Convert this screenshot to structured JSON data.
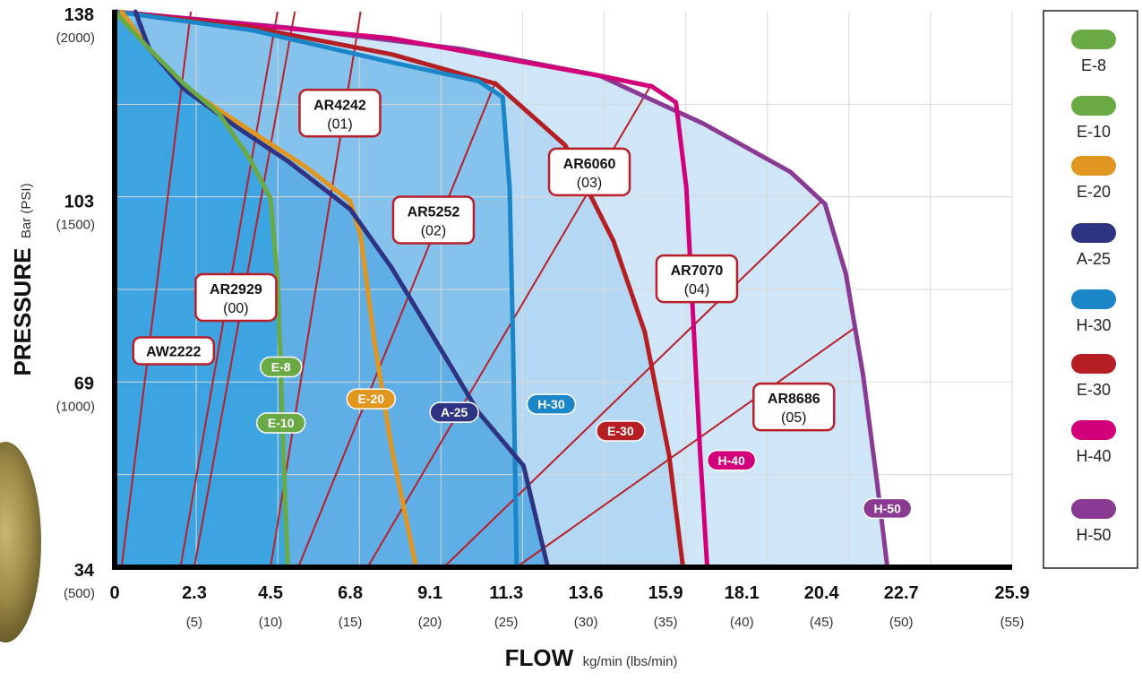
{
  "chart_data": {
    "type": "line",
    "title": "",
    "xlabel": "FLOW",
    "xlabel_unit": "kg/min (lbs/min)",
    "ylabel": "PRESSURE",
    "ylabel_unit": "Bar (PSI)",
    "xlim": [
      0,
      25.9
    ],
    "ylim": [
      34,
      138
    ],
    "grid": true,
    "legend_position": "right",
    "x_ticks": [
      {
        "value": 0,
        "label": "0",
        "sub": ""
      },
      {
        "value": 2.3,
        "label": "2.3",
        "sub": "(5)"
      },
      {
        "value": 4.5,
        "label": "4.5",
        "sub": "(10)"
      },
      {
        "value": 6.8,
        "label": "6.8",
        "sub": "(15)"
      },
      {
        "value": 9.1,
        "label": "9.1",
        "sub": "(20)"
      },
      {
        "value": 11.3,
        "label": "11.3",
        "sub": "(25)"
      },
      {
        "value": 13.6,
        "label": "13.6",
        "sub": "(30)"
      },
      {
        "value": 15.9,
        "label": "15.9",
        "sub": "(35)"
      },
      {
        "value": 18.1,
        "label": "18.1",
        "sub": "(40)"
      },
      {
        "value": 20.4,
        "label": "20.4",
        "sub": "(45)"
      },
      {
        "value": 22.7,
        "label": "22.7",
        "sub": "(50)"
      },
      {
        "value": 25.9,
        "label": "25.9",
        "sub": "(55)"
      }
    ],
    "y_ticks": [
      {
        "value": 138,
        "label": "138",
        "sub": "(2000)"
      },
      {
        "value": 103,
        "label": "103",
        "sub": "(1500)"
      },
      {
        "value": 69,
        "label": "69",
        "sub": "(1000)"
      },
      {
        "value": 34,
        "label": "34",
        "sub": "(500)"
      }
    ],
    "series": [
      {
        "name": "E-8",
        "color": "#6aaa44",
        "label_at": [
          4.8,
          71.5
        ],
        "points": [
          [
            0,
            138
          ],
          [
            1,
            131
          ],
          [
            2,
            124.5
          ],
          [
            3,
            119
          ],
          [
            3.9,
            110.5
          ],
          [
            4.5,
            103
          ],
          [
            4.7,
            88
          ],
          [
            4.8,
            70
          ],
          [
            4.9,
            50
          ],
          [
            5.0,
            34
          ]
        ]
      },
      {
        "name": "E-10",
        "color": "#6aaa44",
        "label_at": [
          4.8,
          61
        ],
        "points": [
          [
            0,
            138
          ],
          [
            1,
            131
          ],
          [
            2,
            124.5
          ],
          [
            3,
            119
          ],
          [
            3.9,
            110.5
          ],
          [
            4.5,
            103
          ],
          [
            4.7,
            88
          ],
          [
            4.8,
            70
          ],
          [
            4.9,
            50
          ],
          [
            5.0,
            34
          ]
        ]
      },
      {
        "name": "E-20",
        "color": "#e0961f",
        "label_at": [
          7.4,
          65.5
        ],
        "points": [
          [
            0.2,
            138
          ],
          [
            1,
            131
          ],
          [
            2,
            124
          ],
          [
            3.5,
            117.5
          ],
          [
            5.5,
            109
          ],
          [
            6.8,
            102.5
          ],
          [
            7.1,
            96
          ],
          [
            7.5,
            76
          ],
          [
            8.0,
            56
          ],
          [
            8.7,
            34
          ]
        ]
      },
      {
        "name": "A-25",
        "color": "#2e3382",
        "label_at": [
          9.8,
          63
        ],
        "points": [
          [
            0.6,
            138
          ],
          [
            1,
            131
          ],
          [
            2,
            123.5
          ],
          [
            3.5,
            116.5
          ],
          [
            5,
            110
          ],
          [
            6.8,
            101
          ],
          [
            8,
            90
          ],
          [
            9.3,
            76
          ],
          [
            10.5,
            63
          ],
          [
            11.8,
            53
          ],
          [
            12.5,
            34
          ]
        ]
      },
      {
        "name": "H-30",
        "color": "#1a86c8",
        "label_at": [
          12.6,
          64.5
        ],
        "points": [
          [
            0,
            138
          ],
          [
            4,
            134.5
          ],
          [
            8,
            128.5
          ],
          [
            10.5,
            125
          ],
          [
            11.2,
            122
          ],
          [
            11.4,
            105
          ],
          [
            11.5,
            75
          ],
          [
            11.6,
            34
          ]
        ]
      },
      {
        "name": "E-30",
        "color": "#b51f24",
        "label_at": [
          14.6,
          59.5
        ],
        "points": [
          [
            0,
            138
          ],
          [
            4,
            135
          ],
          [
            8,
            130
          ],
          [
            11,
            124.5
          ],
          [
            13,
            113
          ],
          [
            14.4,
            95
          ],
          [
            15.3,
            78
          ],
          [
            16,
            55
          ],
          [
            16.4,
            34
          ]
        ]
      },
      {
        "name": "H-40",
        "color": "#d1007a",
        "label_at": [
          17.8,
          54
        ],
        "points": [
          [
            0,
            138
          ],
          [
            8,
            133
          ],
          [
            14,
            126
          ],
          [
            15.5,
            124
          ],
          [
            16.2,
            121
          ],
          [
            16.5,
            105
          ],
          [
            16.7,
            80
          ],
          [
            16.9,
            55
          ],
          [
            17.1,
            34
          ]
        ]
      },
      {
        "name": "H-50",
        "color": "#8b3a93",
        "label_at": [
          22.3,
          45
        ],
        "points": [
          [
            0,
            138
          ],
          [
            5,
            135
          ],
          [
            10,
            131
          ],
          [
            14,
            126
          ],
          [
            17,
            117
          ],
          [
            19.5,
            108
          ],
          [
            20.5,
            102
          ],
          [
            21.1,
            89
          ],
          [
            21.6,
            70
          ],
          [
            22,
            50
          ],
          [
            22.3,
            34
          ]
        ]
      }
    ],
    "models": [
      {
        "name": "AW2222",
        "code": "",
        "line": [
          [
            0.2,
            34
          ],
          [
            2.2,
            138
          ]
        ],
        "label_at": [
          1.7,
          74.5
        ]
      },
      {
        "name": "AR2929",
        "code": "(00)",
        "line": [
          [
            1.9,
            34
          ],
          [
            4.7,
            138
          ]
        ],
        "label_at": [
          3.5,
          84.5
        ]
      },
      {
        "name": "AR4242",
        "code": "(01)",
        "line": [
          [
            2.3,
            34
          ],
          [
            5.2,
            138
          ]
        ],
        "label_at": [
          6.5,
          119
        ]
      },
      {
        "name": "AR5252",
        "code": "(02)",
        "line": [
          [
            4.5,
            34
          ],
          [
            7.1,
            138
          ]
        ],
        "label_at": [
          9.2,
          99
        ]
      },
      {
        "name": "AR6060",
        "code": "(03)",
        "line": [
          [
            5.3,
            34
          ],
          [
            7.1,
            138
          ],
          [
            12.7,
            138
          ]
        ],
        "line_points": [
          [
            5.3,
            34
          ],
          [
            11.0,
            125
          ]
        ],
        "label_at": [
          13.7,
          108
        ]
      },
      {
        "name": "AR7070",
        "code": "(04)",
        "line": [
          [
            7.3,
            34
          ],
          [
            15.5,
            124.5
          ]
        ],
        "label_at": [
          16.8,
          88
        ]
      },
      {
        "name": "AR8686",
        "code": "(05)",
        "line": [
          [
            9.5,
            34
          ],
          [
            20.4,
            102.5
          ]
        ],
        "label_at": [
          19.6,
          64
        ]
      },
      {
        "name": "",
        "code": "",
        "line": [
          [
            11.6,
            34
          ],
          [
            21.4,
            79
          ]
        ],
        "label_at": null
      }
    ]
  },
  "legend": [
    {
      "name": "E-8",
      "color": "#6aaa44"
    },
    {
      "name": "E-10",
      "color": "#6aaa44"
    },
    {
      "name": "E-20",
      "color": "#e0961f"
    },
    {
      "name": "A-25",
      "color": "#2e3382"
    },
    {
      "name": "H-30",
      "color": "#1a86c8"
    },
    {
      "name": "E-30",
      "color": "#b51f24"
    },
    {
      "name": "H-40",
      "color": "#d1007a"
    },
    {
      "name": "H-50",
      "color": "#8b3a93"
    }
  ],
  "fills": [
    "#cfe6f8",
    "#b4d8f3",
    "#86c3ec",
    "#5faee5",
    "#3da4e2"
  ]
}
